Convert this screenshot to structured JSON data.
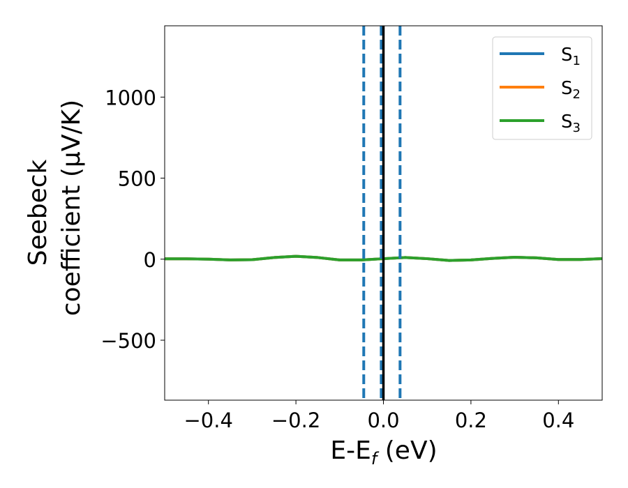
{
  "chart_data": {
    "type": "line",
    "xlabel": "E-E",
    "xlabel_sub": "f",
    "xlabel_unit": " (eV)",
    "ylabel_line1": "Seebeck",
    "ylabel_line2": "coefficient  (μV/K)",
    "xlim": [
      -0.5,
      0.5
    ],
    "ylim": [
      -870,
      1440
    ],
    "x_ticks": [
      -0.4,
      -0.2,
      0.0,
      0.2,
      0.4
    ],
    "x_tick_labels": [
      "−0.4",
      "−0.2",
      "0.0",
      "0.2",
      "0.4"
    ],
    "y_ticks": [
      -500,
      0,
      500,
      1000
    ],
    "y_tick_labels": [
      "−500",
      "0",
      "500",
      "1000"
    ],
    "grid": false,
    "legend_position": "top-right",
    "x": [
      -0.5,
      -0.45,
      -0.4,
      -0.35,
      -0.3,
      -0.25,
      -0.2,
      -0.15,
      -0.1,
      -0.05,
      0.0,
      0.05,
      0.1,
      0.15,
      0.2,
      0.25,
      0.3,
      0.35,
      0.4,
      0.45,
      0.5
    ],
    "series": [
      {
        "name": "S",
        "sub": "1",
        "color": "#1f77b4",
        "values": [
          2,
          2,
          0,
          -5,
          -3,
          10,
          18,
          10,
          -5,
          -5,
          3,
          10,
          3,
          -8,
          -5,
          5,
          12,
          8,
          -2,
          -2,
          3
        ]
      },
      {
        "name": "S",
        "sub": "2",
        "color": "#ff7f0e",
        "values": [
          2,
          2,
          0,
          -5,
          -3,
          10,
          18,
          10,
          -5,
          -5,
          3,
          10,
          3,
          -8,
          -5,
          5,
          12,
          8,
          -2,
          -2,
          3
        ]
      },
      {
        "name": "S",
        "sub": "3",
        "color": "#2ca02c",
        "values": [
          2,
          2,
          0,
          -5,
          -3,
          10,
          18,
          10,
          -5,
          -5,
          3,
          10,
          3,
          -8,
          -5,
          5,
          12,
          8,
          -2,
          -2,
          3
        ]
      }
    ],
    "vlines": [
      {
        "x": -0.045,
        "color": "#1f77b4",
        "style": "dashed"
      },
      {
        "x": -0.005,
        "color": "#1f77b4",
        "style": "dashed"
      },
      {
        "x": 0.038,
        "color": "#1f77b4",
        "style": "dashed"
      },
      {
        "x": 0.0,
        "color": "#000000",
        "style": "solid"
      }
    ]
  }
}
